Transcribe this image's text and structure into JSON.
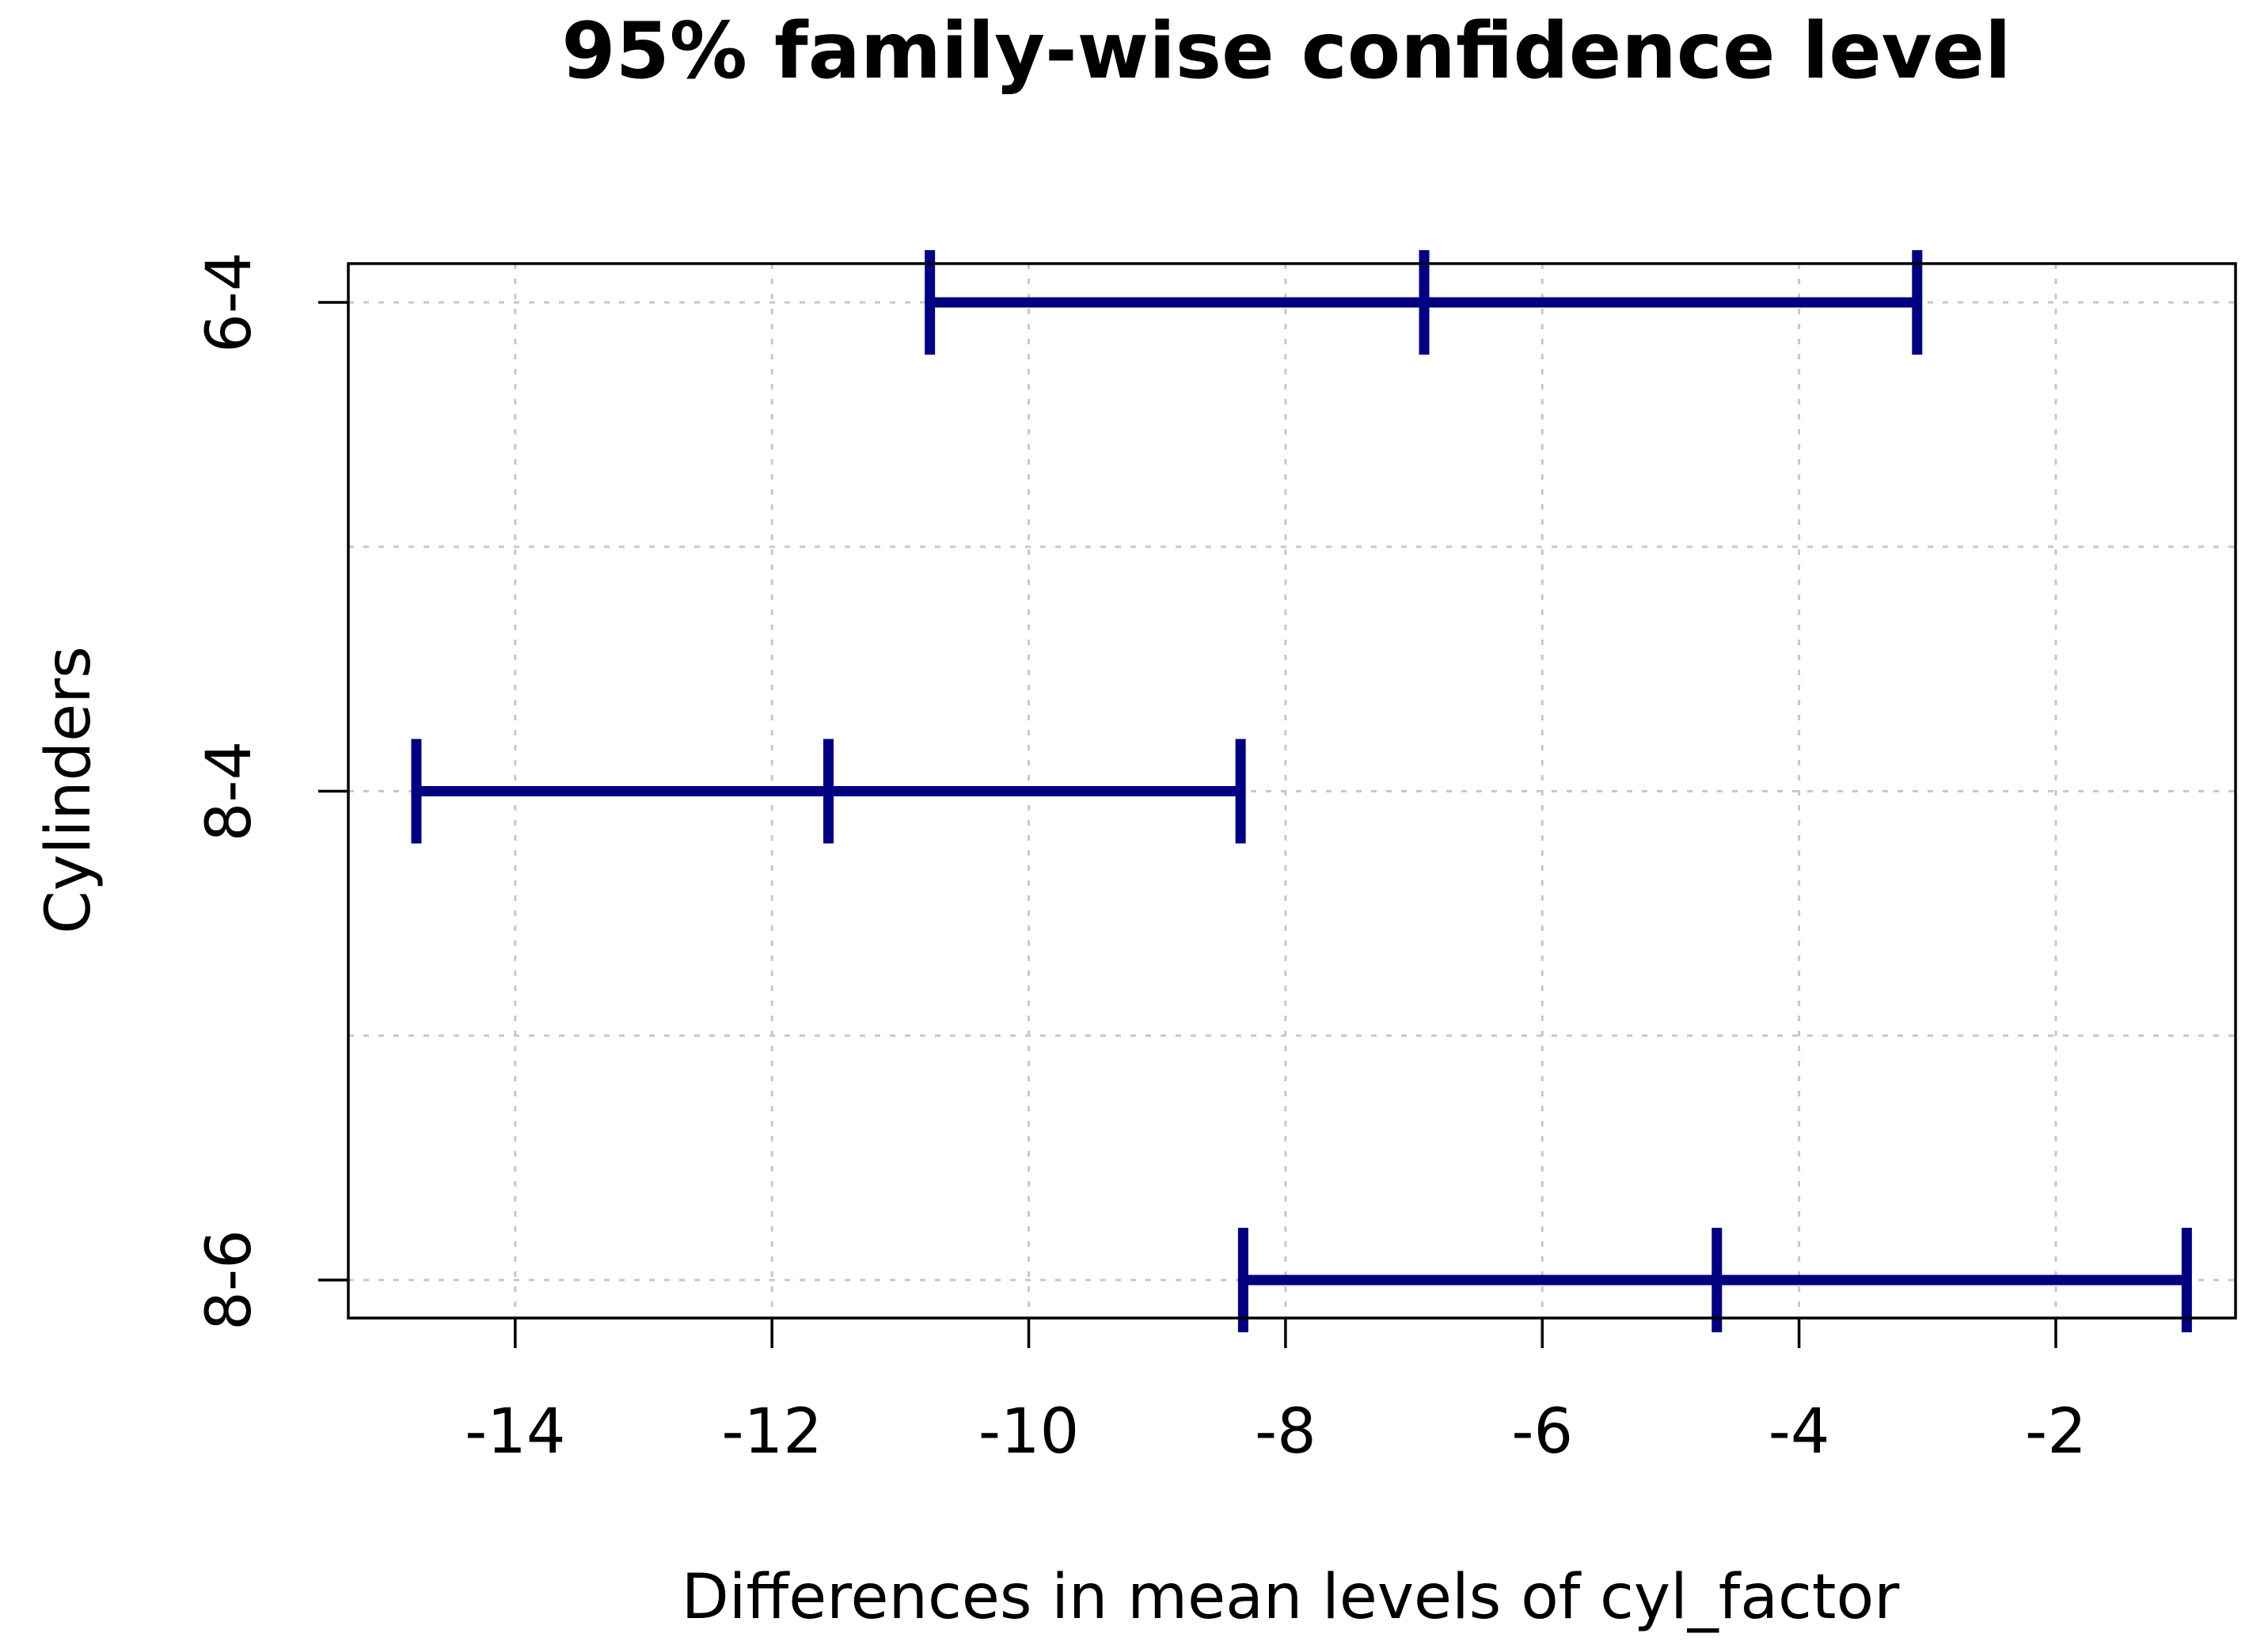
{
  "chart_data": {
    "type": "errorbar",
    "title": "95% family-wise confidence level",
    "xlabel": "Differences in mean levels of cyl_factor",
    "ylabel": "Cylinders",
    "xlim": [
      -15.3,
      -0.6
    ],
    "x_ticks": [
      -14,
      -12,
      -10,
      -8,
      -6,
      -4,
      -2
    ],
    "grid": true,
    "orientation": "horizontal",
    "color": "#000080",
    "categories": [
      "6-4",
      "8-4",
      "8-6"
    ],
    "series": [
      {
        "values": [
          {
            "category": "6-4",
            "lower": -10.77,
            "estimate": -6.92,
            "upper": -3.08
          },
          {
            "category": "8-4",
            "lower": -14.77,
            "estimate": -11.56,
            "upper": -8.35
          },
          {
            "category": "8-6",
            "lower": -8.33,
            "estimate": -4.64,
            "upper": -0.98
          }
        ]
      }
    ]
  }
}
